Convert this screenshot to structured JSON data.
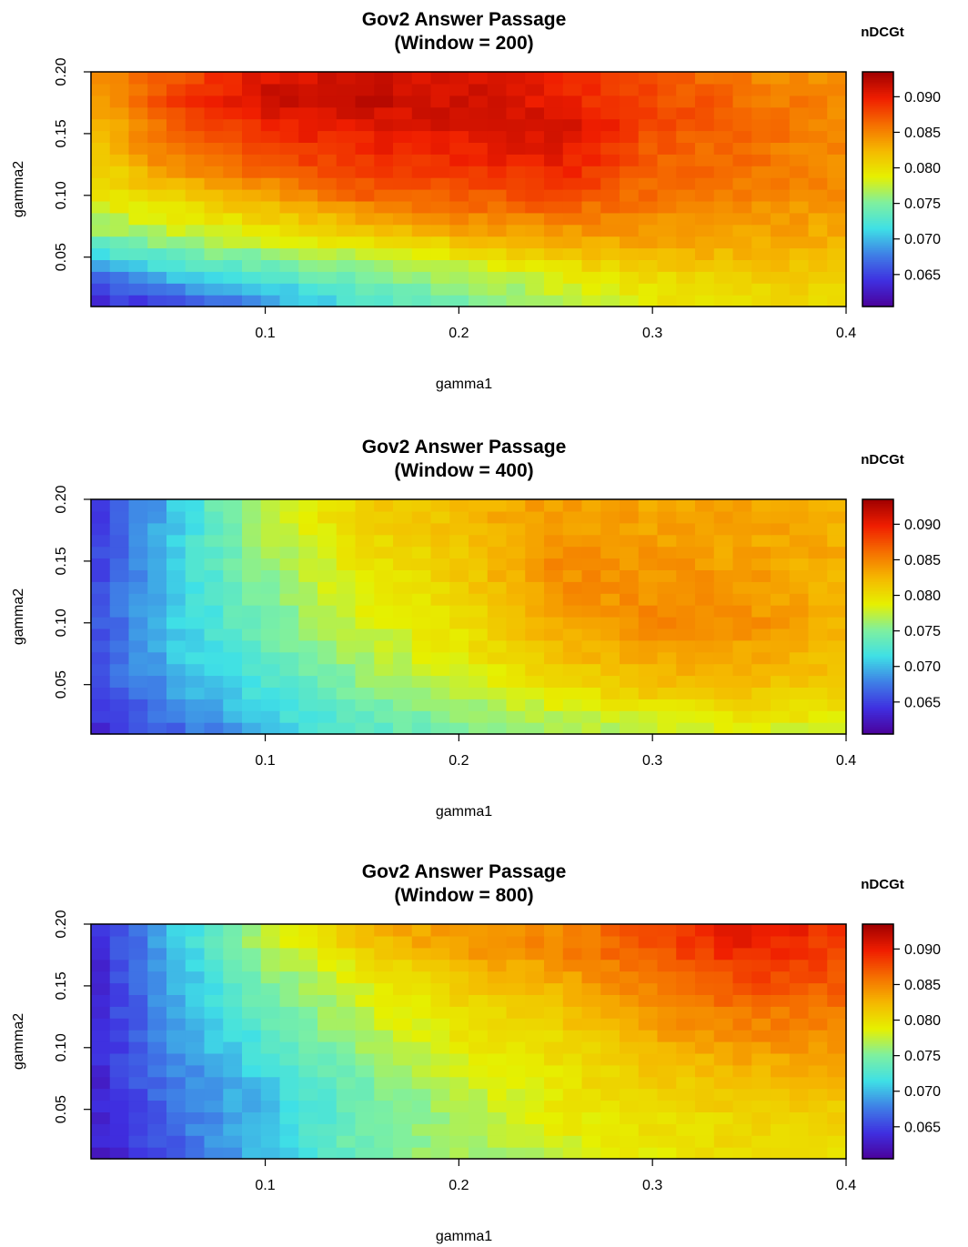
{
  "colors": {
    "palette": [
      "#4B0099",
      "#3F2FE0",
      "#3F7FE6",
      "#3FE0E6",
      "#7FF09F",
      "#E6F000",
      "#F5B800",
      "#F56E00",
      "#F01E00",
      "#A00000"
    ],
    "border": "#000000",
    "background": "#ffffff"
  },
  "chart_data": [
    {
      "type": "heatmap",
      "title_line1": "Gov2 Answer Passage",
      "title_line2": "(Window = 200)",
      "xlabel": "gamma1",
      "ylabel": "gamma2",
      "legend_title": "nDCGt",
      "xlim": [
        0.01,
        0.4
      ],
      "ylim": [
        0.01,
        0.2
      ],
      "xticks": [
        0.1,
        0.2,
        0.3,
        0.4
      ],
      "yticks": [
        0.05,
        0.1,
        0.15,
        0.2
      ],
      "xtick_labels": [
        "0.1",
        "0.2",
        "0.3",
        "0.4"
      ],
      "ytick_labels": [
        "0.05",
        "0.10",
        "0.15",
        "0.20"
      ],
      "zlim": [
        0.0605,
        0.0935
      ],
      "zticks": [
        0.065,
        0.07,
        0.075,
        0.08,
        0.085,
        0.09
      ],
      "ztick_labels": [
        "0.065",
        "0.070",
        "0.075",
        "0.080",
        "0.085",
        "0.090"
      ],
      "grid": {
        "nx": 40,
        "ny": 20
      },
      "control_points": {
        "gamma1": [
          0.01,
          0.05,
          0.1,
          0.15,
          0.2,
          0.25,
          0.3,
          0.35,
          0.4
        ],
        "gamma2": [
          0.01,
          0.03,
          0.05,
          0.07,
          0.1,
          0.13,
          0.16,
          0.18,
          0.2
        ],
        "values": [
          [
            0.0635,
            0.0645,
            0.068,
            0.072,
            0.074,
            0.077,
            0.079,
            0.08,
            0.0795
          ],
          [
            0.066,
            0.069,
            0.072,
            0.074,
            0.076,
            0.078,
            0.08,
            0.081,
            0.081
          ],
          [
            0.071,
            0.0735,
            0.0755,
            0.0775,
            0.079,
            0.081,
            0.082,
            0.0825,
            0.082
          ],
          [
            0.0755,
            0.0775,
            0.079,
            0.081,
            0.083,
            0.084,
            0.084,
            0.0835,
            0.083
          ],
          [
            0.079,
            0.081,
            0.0835,
            0.0865,
            0.087,
            0.088,
            0.086,
            0.085,
            0.0845
          ],
          [
            0.081,
            0.085,
            0.088,
            0.089,
            0.0895,
            0.0905,
            0.087,
            0.086,
            0.0845
          ],
          [
            0.082,
            0.087,
            0.09,
            0.0905,
            0.091,
            0.0915,
            0.088,
            0.0865,
            0.085
          ],
          [
            0.083,
            0.088,
            0.0915,
            0.092,
            0.0915,
            0.09,
            0.088,
            0.086,
            0.0845
          ],
          [
            0.084,
            0.087,
            0.0905,
            0.091,
            0.0905,
            0.0895,
            0.087,
            0.085,
            0.084
          ]
        ]
      }
    },
    {
      "type": "heatmap",
      "title_line1": "Gov2 Answer Passage",
      "title_line2": "(Window = 400)",
      "xlabel": "gamma1",
      "ylabel": "gamma2",
      "legend_title": "nDCGt",
      "xlim": [
        0.01,
        0.4
      ],
      "ylim": [
        0.01,
        0.2
      ],
      "xticks": [
        0.1,
        0.2,
        0.3,
        0.4
      ],
      "yticks": [
        0.05,
        0.1,
        0.15,
        0.2
      ],
      "xtick_labels": [
        "0.1",
        "0.2",
        "0.3",
        "0.4"
      ],
      "ytick_labels": [
        "0.05",
        "0.10",
        "0.15",
        "0.20"
      ],
      "zlim": [
        0.0605,
        0.0935
      ],
      "zticks": [
        0.065,
        0.07,
        0.075,
        0.08,
        0.085,
        0.09
      ],
      "ztick_labels": [
        "0.065",
        "0.070",
        "0.075",
        "0.080",
        "0.085",
        "0.090"
      ],
      "grid": {
        "nx": 40,
        "ny": 20
      },
      "control_points": {
        "gamma1": [
          0.01,
          0.05,
          0.1,
          0.15,
          0.2,
          0.25,
          0.3,
          0.35,
          0.4
        ],
        "gamma2": [
          0.01,
          0.03,
          0.05,
          0.07,
          0.1,
          0.13,
          0.16,
          0.18,
          0.2
        ],
        "values": [
          [
            0.063,
            0.066,
            0.07,
            0.073,
            0.0745,
            0.076,
            0.077,
            0.078,
            0.078
          ],
          [
            0.064,
            0.068,
            0.0715,
            0.074,
            0.076,
            0.078,
            0.0795,
            0.08,
            0.0795
          ],
          [
            0.065,
            0.069,
            0.0725,
            0.0755,
            0.078,
            0.08,
            0.082,
            0.082,
            0.081
          ],
          [
            0.0655,
            0.07,
            0.0735,
            0.0765,
            0.079,
            0.0815,
            0.0835,
            0.083,
            0.082
          ],
          [
            0.0655,
            0.0705,
            0.0745,
            0.078,
            0.08,
            0.083,
            0.085,
            0.0845,
            0.0825
          ],
          [
            0.065,
            0.0705,
            0.0755,
            0.079,
            0.081,
            0.0845,
            0.0845,
            0.084,
            0.0825
          ],
          [
            0.0645,
            0.0705,
            0.0765,
            0.08,
            0.0815,
            0.0845,
            0.084,
            0.0835,
            0.083
          ],
          [
            0.064,
            0.07,
            0.0775,
            0.0805,
            0.082,
            0.084,
            0.0835,
            0.0835,
            0.083
          ],
          [
            0.064,
            0.07,
            0.078,
            0.081,
            0.0825,
            0.084,
            0.0835,
            0.0835,
            0.083
          ]
        ]
      }
    },
    {
      "type": "heatmap",
      "title_line1": "Gov2 Answer Passage",
      "title_line2": "(Window = 800)",
      "xlabel": "gamma1",
      "ylabel": "gamma2",
      "legend_title": "nDCGt",
      "xlim": [
        0.01,
        0.4
      ],
      "ylim": [
        0.01,
        0.2
      ],
      "xticks": [
        0.1,
        0.2,
        0.3,
        0.4
      ],
      "yticks": [
        0.05,
        0.1,
        0.15,
        0.2
      ],
      "xtick_labels": [
        "0.1",
        "0.2",
        "0.3",
        "0.4"
      ],
      "ytick_labels": [
        "0.05",
        "0.10",
        "0.15",
        "0.20"
      ],
      "zlim": [
        0.0605,
        0.0935
      ],
      "zticks": [
        0.065,
        0.07,
        0.075,
        0.08,
        0.085,
        0.09
      ],
      "ztick_labels": [
        "0.065",
        "0.070",
        "0.075",
        "0.080",
        "0.085",
        "0.090"
      ],
      "grid": {
        "nx": 40,
        "ny": 20
      },
      "control_points": {
        "gamma1": [
          0.01,
          0.05,
          0.1,
          0.15,
          0.2,
          0.25,
          0.3,
          0.35,
          0.4
        ],
        "gamma2": [
          0.01,
          0.03,
          0.05,
          0.07,
          0.1,
          0.13,
          0.16,
          0.18,
          0.2
        ],
        "values": [
          [
            0.0625,
            0.065,
            0.07,
            0.0745,
            0.0765,
            0.077,
            0.079,
            0.08,
            0.079
          ],
          [
            0.063,
            0.0665,
            0.071,
            0.0745,
            0.077,
            0.0785,
            0.08,
            0.0805,
            0.08
          ],
          [
            0.063,
            0.067,
            0.0705,
            0.074,
            0.077,
            0.079,
            0.08,
            0.081,
            0.081
          ],
          [
            0.063,
            0.0675,
            0.0705,
            0.0745,
            0.0775,
            0.0795,
            0.081,
            0.082,
            0.082
          ],
          [
            0.063,
            0.0685,
            0.0725,
            0.0765,
            0.079,
            0.08,
            0.0825,
            0.084,
            0.084
          ],
          [
            0.063,
            0.069,
            0.074,
            0.0775,
            0.08,
            0.0815,
            0.0845,
            0.086,
            0.0855
          ],
          [
            0.063,
            0.0695,
            0.0755,
            0.079,
            0.082,
            0.0835,
            0.086,
            0.0885,
            0.0875
          ],
          [
            0.063,
            0.07,
            0.077,
            0.081,
            0.084,
            0.085,
            0.0875,
            0.09,
            0.088
          ],
          [
            0.063,
            0.07,
            0.078,
            0.0825,
            0.0845,
            0.0845,
            0.088,
            0.091,
            0.0885
          ]
        ]
      }
    }
  ]
}
